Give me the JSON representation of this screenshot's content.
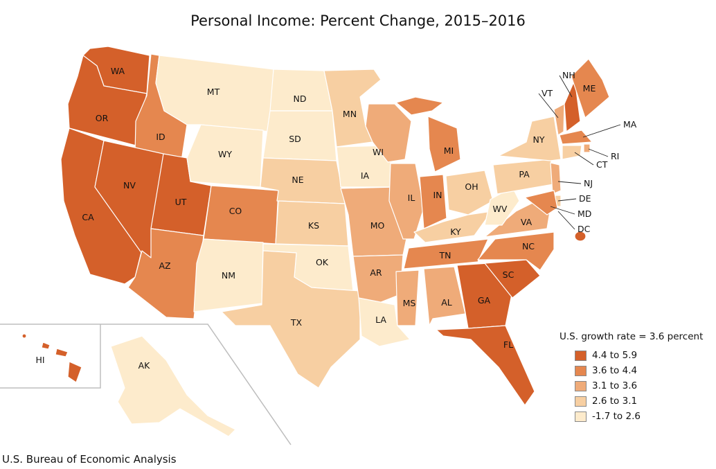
{
  "title": "Personal Income: Percent Change, 2015–2016",
  "source": "U.S. Bureau of Economic Analysis",
  "legend": {
    "title": "U.S. growth rate = 3.6 percent",
    "items": [
      {
        "label": "4.4 to 5.9",
        "color": "#d4602a"
      },
      {
        "label": "3.6 to 4.4",
        "color": "#e5874f"
      },
      {
        "label": "3.1 to 3.6",
        "color": "#efab79"
      },
      {
        "label": "2.6 to 3.1",
        "color": "#f7cfa2"
      },
      {
        "label": "-1.7 to 2.6",
        "color": "#fdebcc"
      }
    ]
  },
  "states": [
    {
      "abbr": "WA",
      "class": 0
    },
    {
      "abbr": "OR",
      "class": 0
    },
    {
      "abbr": "CA",
      "class": 0
    },
    {
      "abbr": "ID",
      "class": 1
    },
    {
      "abbr": "NV",
      "class": 0
    },
    {
      "abbr": "UT",
      "class": 0
    },
    {
      "abbr": "AZ",
      "class": 1
    },
    {
      "abbr": "MT",
      "class": 4
    },
    {
      "abbr": "WY",
      "class": 4
    },
    {
      "abbr": "CO",
      "class": 1
    },
    {
      "abbr": "NM",
      "class": 4
    },
    {
      "abbr": "ND",
      "class": 4
    },
    {
      "abbr": "SD",
      "class": 4
    },
    {
      "abbr": "NE",
      "class": 3
    },
    {
      "abbr": "KS",
      "class": 3
    },
    {
      "abbr": "OK",
      "class": 4
    },
    {
      "abbr": "TX",
      "class": 3
    },
    {
      "abbr": "MN",
      "class": 3
    },
    {
      "abbr": "IA",
      "class": 4
    },
    {
      "abbr": "MO",
      "class": 2
    },
    {
      "abbr": "AR",
      "class": 2
    },
    {
      "abbr": "LA",
      "class": 4
    },
    {
      "abbr": "WI",
      "class": 2
    },
    {
      "abbr": "IL",
      "class": 2
    },
    {
      "abbr": "MI",
      "class": 1
    },
    {
      "abbr": "IN",
      "class": 1
    },
    {
      "abbr": "OH",
      "class": 3
    },
    {
      "abbr": "KY",
      "class": 3
    },
    {
      "abbr": "TN",
      "class": 1
    },
    {
      "abbr": "MS",
      "class": 2
    },
    {
      "abbr": "AL",
      "class": 2
    },
    {
      "abbr": "GA",
      "class": 0
    },
    {
      "abbr": "FL",
      "class": 0
    },
    {
      "abbr": "SC",
      "class": 0
    },
    {
      "abbr": "NC",
      "class": 1
    },
    {
      "abbr": "VA",
      "class": 2
    },
    {
      "abbr": "WV",
      "class": 4
    },
    {
      "abbr": "PA",
      "class": 3
    },
    {
      "abbr": "NY",
      "class": 3
    },
    {
      "abbr": "VT",
      "class": 2
    },
    {
      "abbr": "NH",
      "class": 0
    },
    {
      "abbr": "ME",
      "class": 1
    },
    {
      "abbr": "MA",
      "class": 1
    },
    {
      "abbr": "RI",
      "class": 2
    },
    {
      "abbr": "CT",
      "class": 3
    },
    {
      "abbr": "NJ",
      "class": 2
    },
    {
      "abbr": "DE",
      "class": 3
    },
    {
      "abbr": "MD",
      "class": 1
    },
    {
      "abbr": "DC",
      "class": 0
    },
    {
      "abbr": "AK",
      "class": 4
    },
    {
      "abbr": "HI",
      "class": 0
    }
  ]
}
